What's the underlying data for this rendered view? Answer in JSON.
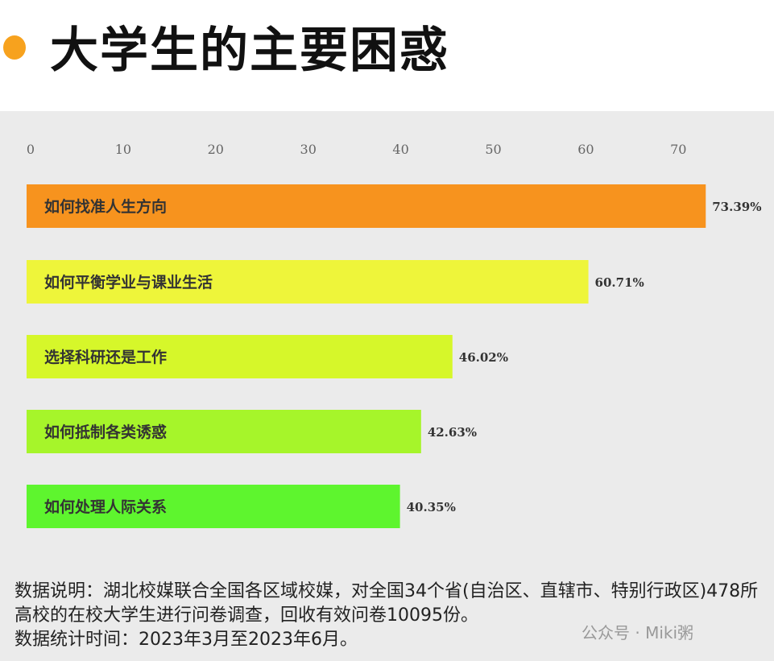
{
  "title": "大学生的主要困惑",
  "colors": {
    "title_dot": "#f7a21e",
    "panel": "#ebebeb"
  },
  "chart_data": {
    "type": "bar",
    "orientation": "horizontal",
    "title": "大学生的主要困惑",
    "categories": [
      "如何找准人生方向",
      "如何平衡学业与课业生活",
      "选择科研还是工作",
      "如何抵制各类诱惑",
      "如何处理人际关系"
    ],
    "values": [
      73.39,
      60.71,
      46.02,
      42.63,
      40.35
    ],
    "value_labels": [
      "73.39%",
      "60.71%",
      "46.02%",
      "42.63%",
      "40.35%"
    ],
    "bar_colors": [
      "#f7931e",
      "#eef53a",
      "#d6f72a",
      "#a6f52a",
      "#5ef52e"
    ],
    "xticks": [
      "0",
      "10",
      "20",
      "30",
      "40",
      "50",
      "60",
      "70"
    ],
    "xlim": [
      0,
      73.39
    ],
    "axis_position": "top",
    "grid": false
  },
  "notes": {
    "line1": "数据说明：湖北校媒联合全国各区域校媒，对全国34个省(自治区、直辖市、特别行政区)478所高校的在校大学生进行问卷调查，回收有效问卷10095份。",
    "line2": "数据统计时间：2023年3月至2023年6月。"
  },
  "watermark": "公众号 · Miki粥"
}
